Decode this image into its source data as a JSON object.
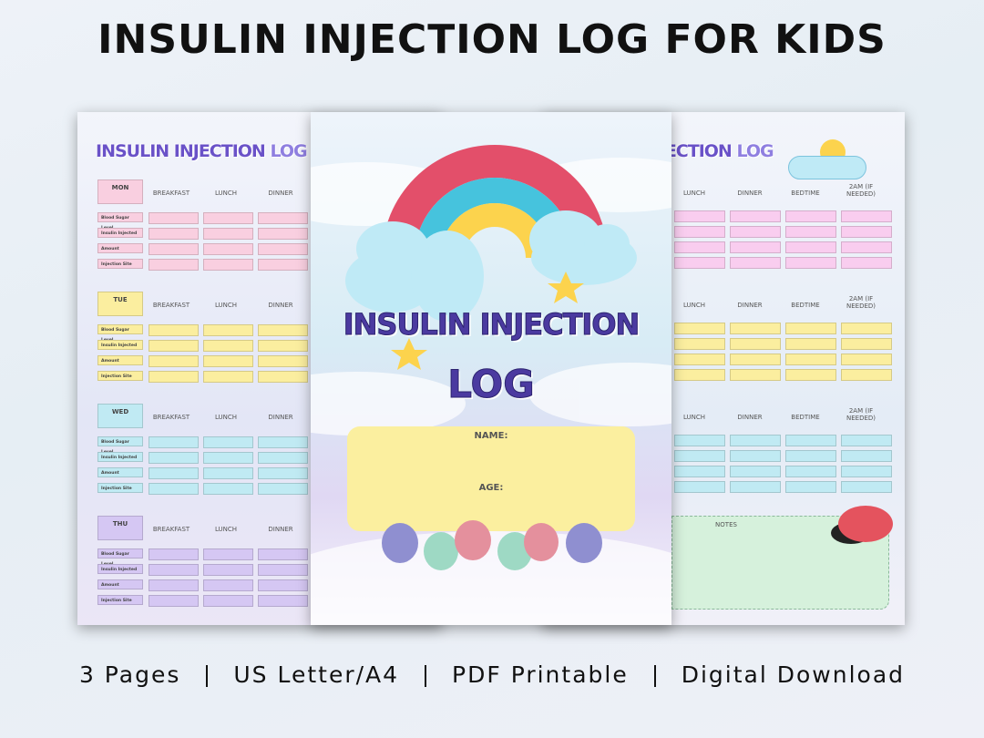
{
  "header": {
    "title": "INSULIN INJECTION LOG FOR KIDS"
  },
  "footer": {
    "items": [
      "3 Pages",
      "US Letter/A4",
      "PDF Printable",
      "Digital Download"
    ]
  },
  "left_page": {
    "title_main": "INSULIN INJECTION",
    "title_end": "LOG",
    "days": [
      "MON",
      "TUE",
      "WED",
      "THU"
    ],
    "columns": [
      "BREAKFAST",
      "LUNCH",
      "DINNER"
    ],
    "rows": [
      "Blood Sugar Level",
      "Insulin Injected",
      "Amount",
      "Injection Site"
    ]
  },
  "cover": {
    "title": "INSULIN INJECTION",
    "subtitle": "LOG",
    "fields": [
      "NAME:",
      "AGE:"
    ]
  },
  "right_page": {
    "title_main": "INSULIN INJECTION",
    "title_end": "LOG",
    "columns": [
      "LUNCH",
      "DINNER",
      "BEDTIME",
      "2AM (IF NEEDED)"
    ],
    "notes": "NOTES"
  }
}
